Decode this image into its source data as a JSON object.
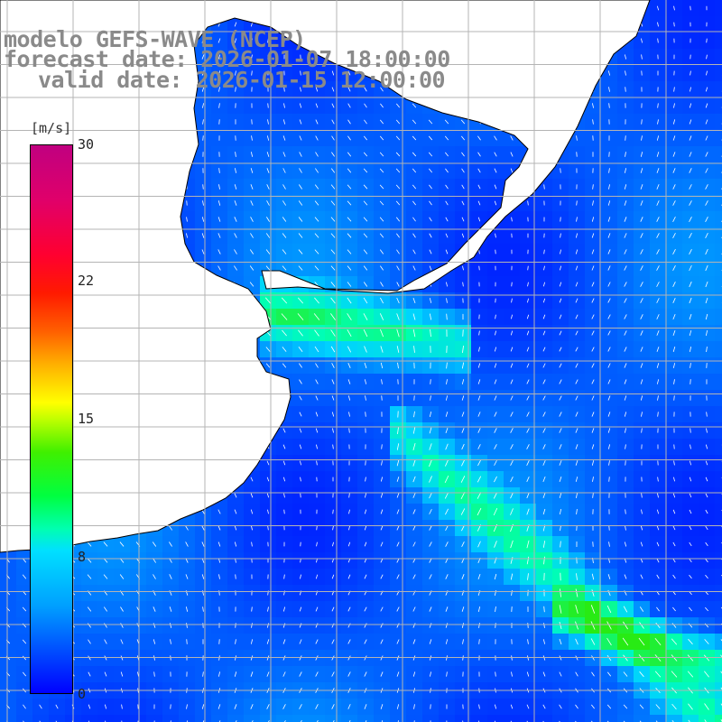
{
  "header": {
    "line1": "modelo GEFS-WAVE (NCEP)",
    "line2": "forecast date: 2026-01-07 18:00:00",
    "line3": "valid date: 2026-01-15 12:00:00"
  },
  "colorbar": {
    "unit": "[m/s]",
    "labels": [
      "30",
      "22",
      "15",
      "8",
      "0"
    ],
    "min": 0,
    "max": 30
  },
  "map": {
    "variable": "wind speed",
    "field_colors": {
      "low": "#0000ff",
      "mid": "#00e0ff",
      "high": "#00ff40"
    },
    "land_color": "#ffffff",
    "coastline_color": "#000000",
    "gridline_color": "#b4b4b4",
    "arrow_color": "#ffffff"
  }
}
